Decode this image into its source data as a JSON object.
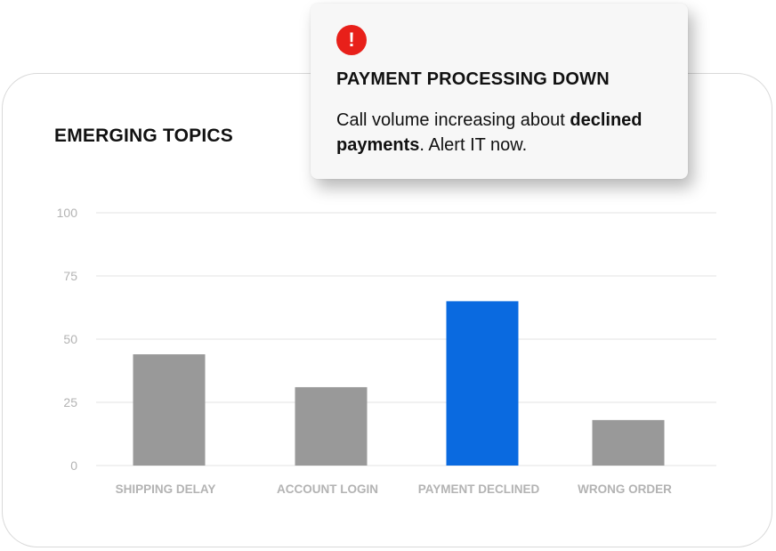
{
  "alert": {
    "icon": "exclamation-icon",
    "icon_glyph": "!",
    "icon_color": "#e8201a",
    "title": "PAYMENT PROCESSING DOWN",
    "message_prefix": "Call volume increasing about ",
    "message_bold": "declined payments",
    "message_suffix": ". Alert IT now."
  },
  "colors": {
    "default_bar": "#999999",
    "highlight_bar": "#0a6ae0",
    "grid": "#e3e3e3",
    "tick_label": "#b3b3b3"
  },
  "chart_data": {
    "type": "bar",
    "title": "EMERGING TOPICS",
    "categories": [
      "SHIPPING DELAY",
      "ACCOUNT LOGIN",
      "PAYMENT DECLINED",
      "WRONG ORDER"
    ],
    "values": [
      44,
      31,
      65,
      18
    ],
    "highlighted_category": "PAYMENT DECLINED",
    "ylim": [
      0,
      100
    ],
    "yticks": [
      0,
      25,
      50,
      75,
      100
    ],
    "grid": true,
    "legend": "none"
  }
}
